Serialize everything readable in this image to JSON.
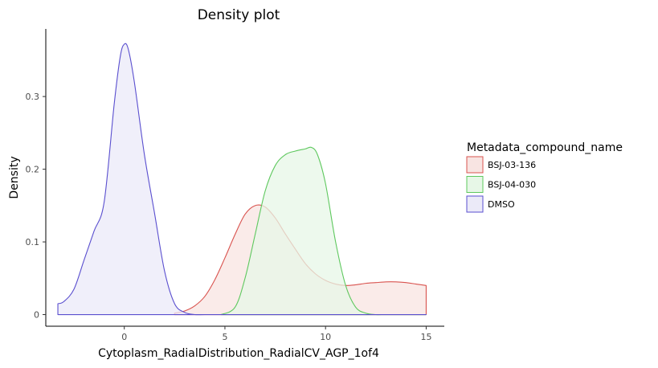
{
  "chart_data": {
    "type": "area",
    "title": "Density plot",
    "xlabel": "Cytoplasm_RadialDistribution_RadialCV_AGP_1of4",
    "ylabel": "Density",
    "xlim": [
      -3.9,
      15.9
    ],
    "ylim": [
      -0.016,
      0.393
    ],
    "xticks": [
      0,
      5,
      10,
      15
    ],
    "yticks": [
      0,
      0.1,
      0.2,
      0.3
    ],
    "xtick_labels": [
      "0",
      "5",
      "10",
      "15"
    ],
    "ytick_labels": [
      "0",
      "0.1",
      "0.2",
      "0.3"
    ],
    "grid": false,
    "legend": {
      "title": "Metadata_compound_name",
      "position": "right"
    },
    "series": [
      {
        "name": "BSJ-03-136",
        "color": "#d9534f",
        "fill": "#f8e4e2",
        "x": [
          2.5,
          3.0,
          3.5,
          4.0,
          4.5,
          5.0,
          5.5,
          6.0,
          6.5,
          7.0,
          7.5,
          8.0,
          8.5,
          9.0,
          9.5,
          10.0,
          10.5,
          11.0,
          11.5,
          12.0,
          12.5,
          13.0,
          13.5,
          14.0,
          14.5,
          15.0
        ],
        "y": [
          0.002,
          0.005,
          0.012,
          0.025,
          0.048,
          0.078,
          0.11,
          0.138,
          0.15,
          0.148,
          0.133,
          0.111,
          0.09,
          0.07,
          0.056,
          0.047,
          0.042,
          0.04,
          0.041,
          0.043,
          0.044,
          0.045,
          0.045,
          0.044,
          0.042,
          0.04
        ]
      },
      {
        "name": "BSJ-04-030",
        "color": "#5ec85e",
        "fill": "#e7f7e7",
        "x": [
          4.8,
          5.5,
          6.0,
          6.5,
          7.0,
          7.5,
          8.0,
          8.5,
          9.0,
          9.3,
          9.6,
          10.0,
          10.5,
          11.0,
          11.5,
          12.0,
          12.5,
          13.0,
          14.0,
          15.0
        ],
        "y": [
          0.0,
          0.01,
          0.05,
          0.11,
          0.17,
          0.205,
          0.22,
          0.225,
          0.228,
          0.23,
          0.22,
          0.18,
          0.1,
          0.04,
          0.01,
          0.002,
          0.0,
          0.0,
          0.0,
          0.0
        ]
      },
      {
        "name": "DMSO",
        "color": "#5a4fcf",
        "fill": "#ebeaf8",
        "x": [
          -3.3,
          -3.0,
          -2.5,
          -2.0,
          -1.5,
          -1.0,
          -0.5,
          -0.2,
          0.0,
          0.2,
          0.5,
          1.0,
          1.5,
          2.0,
          2.5,
          3.0,
          3.5,
          4.0,
          5.0,
          6.0,
          8.0,
          10.0,
          12.0,
          15.0
        ],
        "y": [
          0.015,
          0.018,
          0.035,
          0.075,
          0.115,
          0.155,
          0.29,
          0.355,
          0.372,
          0.365,
          0.32,
          0.22,
          0.14,
          0.06,
          0.015,
          0.003,
          0.0,
          0.0,
          0.0,
          0.0,
          0.0,
          0.0,
          0.0,
          0.0
        ]
      }
    ]
  }
}
